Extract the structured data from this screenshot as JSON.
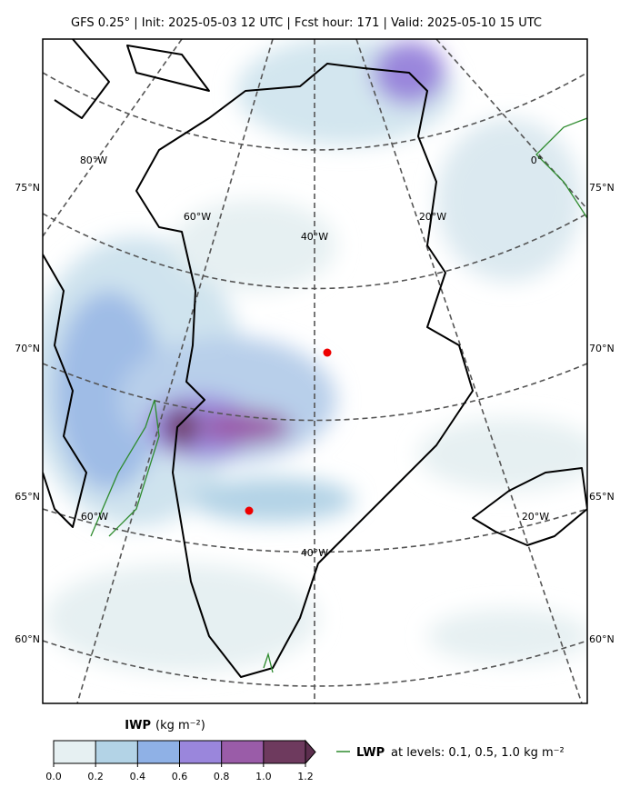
{
  "header": {
    "title": "GFS 0.25°  |  Init: 2025-05-03 12 UTC  |  Fcst hour: 171  |  Valid: 2025-05-10 15 UTC"
  },
  "map": {
    "lat_labels": [
      "75°N",
      "70°N",
      "65°N",
      "60°N"
    ],
    "lon_labels": [
      "80°W",
      "60°W",
      "40°W",
      "20°W",
      "0°",
      "60°W",
      "40°W",
      "20°W"
    ]
  },
  "colorbar": {
    "label": "IWP",
    "unit": "(kg m⁻²)",
    "lim": [
      0,
      1.2
    ],
    "ticks": [
      {
        "value": 0,
        "label": "0.0"
      },
      0.2,
      0.4,
      0.6,
      0.8,
      {
        "value": 1,
        "label": "1.0"
      },
      1.2
    ],
    "colors": [
      "#e6f0f2",
      "#b3d3e6",
      "#8fb1e6",
      "#9a86dc",
      "#9a5ca8",
      "#6e3a5e"
    ],
    "extend_color": "#5c2e4e"
  },
  "legend": {
    "name": "LWP",
    "text": "at levels: 0.1, 0.5, 1.0  kg m⁻²",
    "color": "#2e8b2e"
  }
}
